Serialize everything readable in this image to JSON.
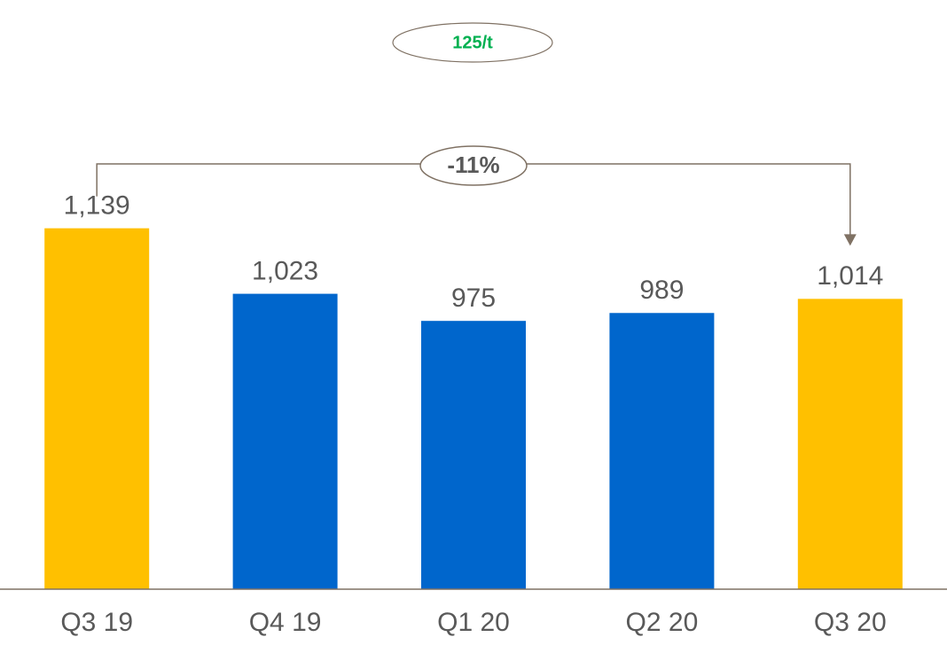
{
  "chart_data": {
    "type": "bar",
    "categories": [
      "Q3 19",
      "Q4 19",
      "Q1 20",
      "Q2 20",
      "Q3 20"
    ],
    "values": [
      1139,
      1023,
      975,
      989,
      1014
    ],
    "value_labels": [
      "1,139",
      "1,023",
      "975",
      "989",
      "1,014"
    ],
    "colors": [
      "#FFC000",
      "#0066CC",
      "#0066CC",
      "#0066CC",
      "#FFC000"
    ],
    "ylim": [
      500,
      1540
    ],
    "annotations": [
      "125/t",
      "-11%"
    ]
  }
}
